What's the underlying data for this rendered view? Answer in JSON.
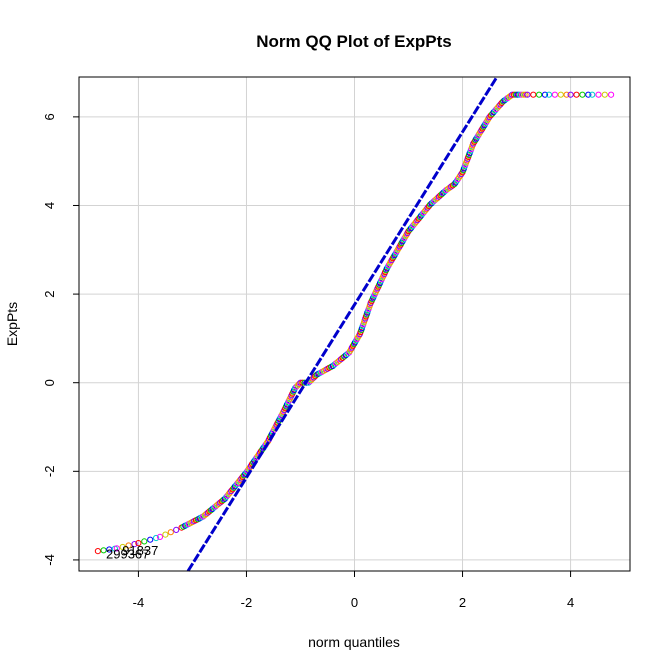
{
  "chart_data": {
    "type": "scatter",
    "title": "Norm QQ Plot of ExpPts",
    "xlabel": "norm quantiles",
    "ylabel": "ExpPts",
    "xlim": [
      -5.1,
      5.1
    ],
    "ylim": [
      -4.25,
      6.9
    ],
    "xticks": [
      -4,
      -2,
      0,
      2,
      4
    ],
    "yticks": [
      -4,
      -2,
      0,
      2,
      4,
      6
    ],
    "xtick_labels": [
      "-4",
      "-2",
      "0",
      "2",
      "4"
    ],
    "ytick_labels": [
      "-4",
      "-2",
      "0",
      "2",
      "4",
      "6"
    ],
    "grid": true,
    "reference_line": {
      "slope": 1.95,
      "intercept": 1.76,
      "color": "#0000cc"
    },
    "point_colors": [
      "#ff0000",
      "#00cc00",
      "#0000ff",
      "#00cccc",
      "#ff00ff",
      "#cccc00",
      "#ff8000",
      "#8000ff"
    ],
    "quantile_curve": [
      {
        "x": -4.75,
        "y": -3.8
      },
      {
        "x": -4.4,
        "y": -3.74
      },
      {
        "x": -4.0,
        "y": -3.62
      },
      {
        "x": -3.6,
        "y": -3.48
      },
      {
        "x": -3.2,
        "y": -3.27
      },
      {
        "x": -2.8,
        "y": -3.02
      },
      {
        "x": -2.4,
        "y": -2.62
      },
      {
        "x": -2.0,
        "y": -2.02
      },
      {
        "x": -1.6,
        "y": -1.32
      },
      {
        "x": -1.3,
        "y": -0.62
      },
      {
        "x": -1.1,
        "y": -0.12
      },
      {
        "x": -1.0,
        "y": 0.0
      },
      {
        "x": -0.85,
        "y": 0.0
      },
      {
        "x": -0.7,
        "y": 0.18
      },
      {
        "x": -0.4,
        "y": 0.38
      },
      {
        "x": -0.1,
        "y": 0.68
      },
      {
        "x": 0.1,
        "y": 1.1
      },
      {
        "x": 0.3,
        "y": 1.8
      },
      {
        "x": 0.6,
        "y": 2.58
      },
      {
        "x": 1.0,
        "y": 3.42
      },
      {
        "x": 1.4,
        "y": 4.02
      },
      {
        "x": 1.7,
        "y": 4.35
      },
      {
        "x": 1.85,
        "y": 4.48
      },
      {
        "x": 2.0,
        "y": 4.75
      },
      {
        "x": 2.2,
        "y": 5.4
      },
      {
        "x": 2.5,
        "y": 6.0
      },
      {
        "x": 2.75,
        "y": 6.35
      },
      {
        "x": 2.92,
        "y": 6.5
      },
      {
        "x": 3.2,
        "y": 6.5
      },
      {
        "x": 3.6,
        "y": 6.5
      },
      {
        "x": 4.0,
        "y": 6.5
      },
      {
        "x": 4.4,
        "y": 6.5
      },
      {
        "x": 4.75,
        "y": 6.5
      }
    ],
    "annotations": [
      {
        "text": "299367",
        "x": -4.6,
        "y": -3.85
      },
      {
        "text": "91837",
        "x": -4.3,
        "y": -3.78
      }
    ]
  }
}
